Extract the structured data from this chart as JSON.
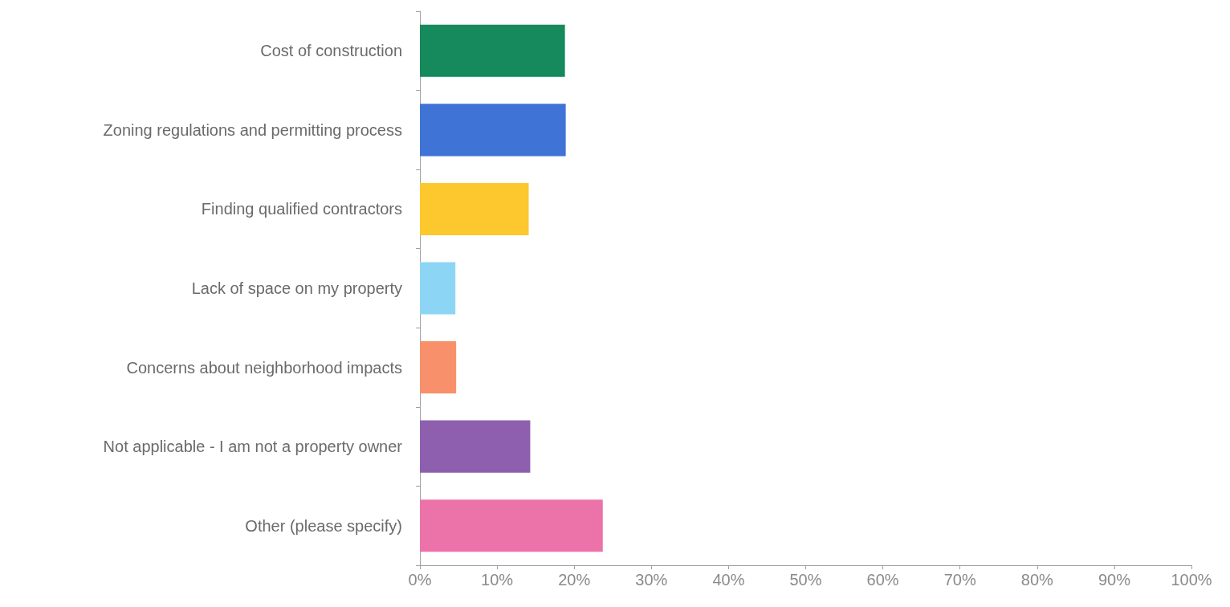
{
  "chart_data": {
    "type": "bar",
    "orientation": "horizontal",
    "categories": [
      "Cost of construction",
      "Zoning regulations and permitting process",
      "Finding qualified contractors",
      "Lack of space on my property",
      "Concerns about neighborhood impacts",
      "Not applicable - I am not a property owner",
      "Other (please specify)"
    ],
    "values": [
      18.8,
      18.9,
      14.1,
      4.6,
      4.7,
      14.3,
      23.7
    ],
    "colors": [
      "#168a5c",
      "#3f74d6",
      "#fcc82e",
      "#8dd5f5",
      "#f7906b",
      "#8e5fae",
      "#ec73a9"
    ],
    "xlim": [
      0,
      100
    ],
    "xticks": [
      {
        "value": 0,
        "label": "0%"
      },
      {
        "value": 10,
        "label": "10%"
      },
      {
        "value": 20,
        "label": "20%"
      },
      {
        "value": 30,
        "label": "30%"
      },
      {
        "value": 40,
        "label": "40%"
      },
      {
        "value": 50,
        "label": "50%"
      },
      {
        "value": 60,
        "label": "60%"
      },
      {
        "value": 70,
        "label": "70%"
      },
      {
        "value": 80,
        "label": "80%"
      },
      {
        "value": 90,
        "label": "90%"
      },
      {
        "value": 100,
        "label": "100%"
      }
    ],
    "grid": false
  }
}
